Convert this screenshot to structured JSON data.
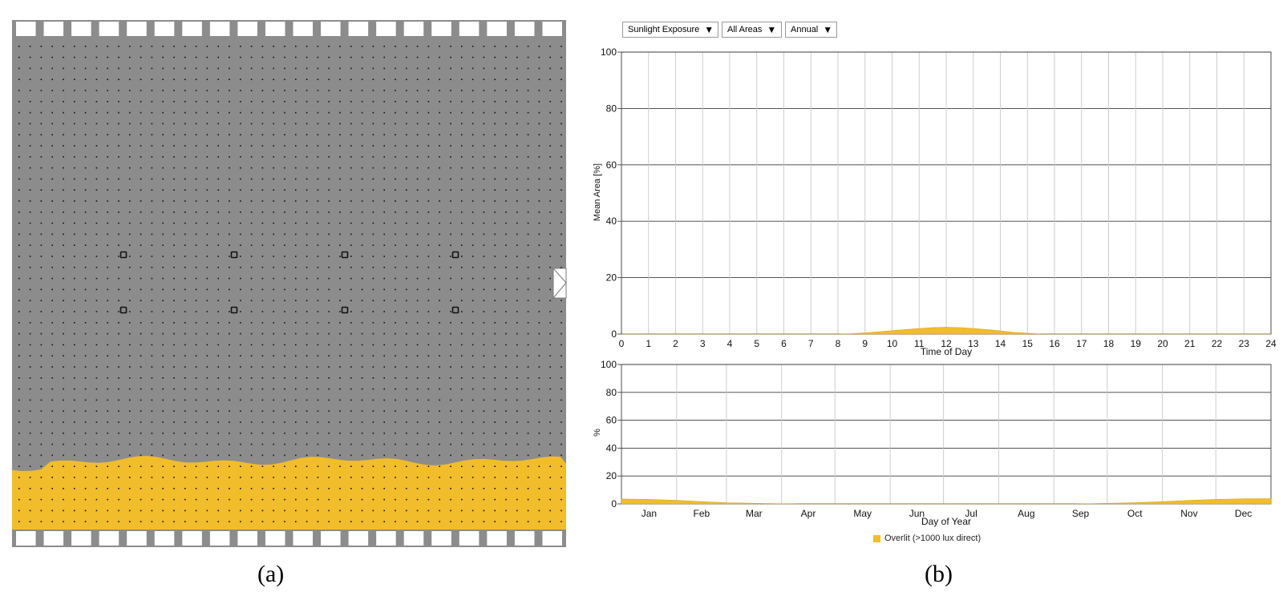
{
  "captions": {
    "a": "(a)",
    "b": "(b)"
  },
  "controls": {
    "metric": "Sunlight Exposure",
    "area": "All Areas",
    "period": "Annual",
    "arrow_icon": "triangle-down"
  },
  "colors": {
    "overlit": "#f1bd2a",
    "floor": "#8c8c8c",
    "grid": "#c8c8c8",
    "grid_major": "#3c3c3c"
  },
  "legend": {
    "label": "Overlit (>1000 lux direct)"
  },
  "chart_data": [
    {
      "type": "area",
      "xlabel": "Time of Day",
      "ylabel": "Mean Area [%]",
      "xlim": [
        0,
        24
      ],
      "ylim": [
        0,
        100
      ],
      "xticks": [
        "0",
        "1",
        "2",
        "3",
        "4",
        "5",
        "6",
        "7",
        "8",
        "9",
        "10",
        "11",
        "12",
        "13",
        "14",
        "15",
        "16",
        "17",
        "18",
        "19",
        "20",
        "21",
        "22",
        "23",
        "24"
      ],
      "yticks": [
        "0",
        "20",
        "40",
        "60",
        "80",
        "100"
      ],
      "grid": true,
      "series": [
        {
          "name": "Overlit (>1000 lux direct)",
          "x": [
            0,
            8,
            8.5,
            9,
            9.5,
            10,
            10.5,
            11,
            11.5,
            12,
            12.5,
            13,
            13.5,
            14,
            14.5,
            15,
            15.5,
            24
          ],
          "values": [
            0,
            0,
            0.1,
            0.4,
            0.8,
            1.2,
            1.6,
            2.0,
            2.3,
            2.4,
            2.3,
            2.0,
            1.6,
            1.1,
            0.6,
            0.3,
            0,
            0
          ]
        }
      ]
    },
    {
      "type": "area",
      "xlabel": "Day of Year",
      "ylabel": "%",
      "xlim": [
        0,
        365
      ],
      "ylim": [
        0,
        100
      ],
      "categories": [
        "Jan",
        "Feb",
        "Mar",
        "Apr",
        "May",
        "Jun",
        "Jul",
        "Aug",
        "Sep",
        "Oct",
        "Nov",
        "Dec"
      ],
      "yticks": [
        "0",
        "20",
        "40",
        "60",
        "80",
        "100"
      ],
      "grid": true,
      "series": [
        {
          "name": "Overlit (>1000 lux direct)",
          "x": [
            0,
            15,
            31,
            45,
            59,
            75,
            90,
            100,
            255,
            273,
            290,
            304,
            320,
            334,
            350,
            365
          ],
          "values": [
            3.5,
            3.2,
            2.6,
            1.6,
            0.8,
            0.4,
            0.1,
            0,
            0,
            0.4,
            0.9,
            1.6,
            2.5,
            3.2,
            3.6,
            3.7
          ]
        }
      ]
    }
  ],
  "floor_plan": {
    "overlit_fraction": 0.14
  }
}
